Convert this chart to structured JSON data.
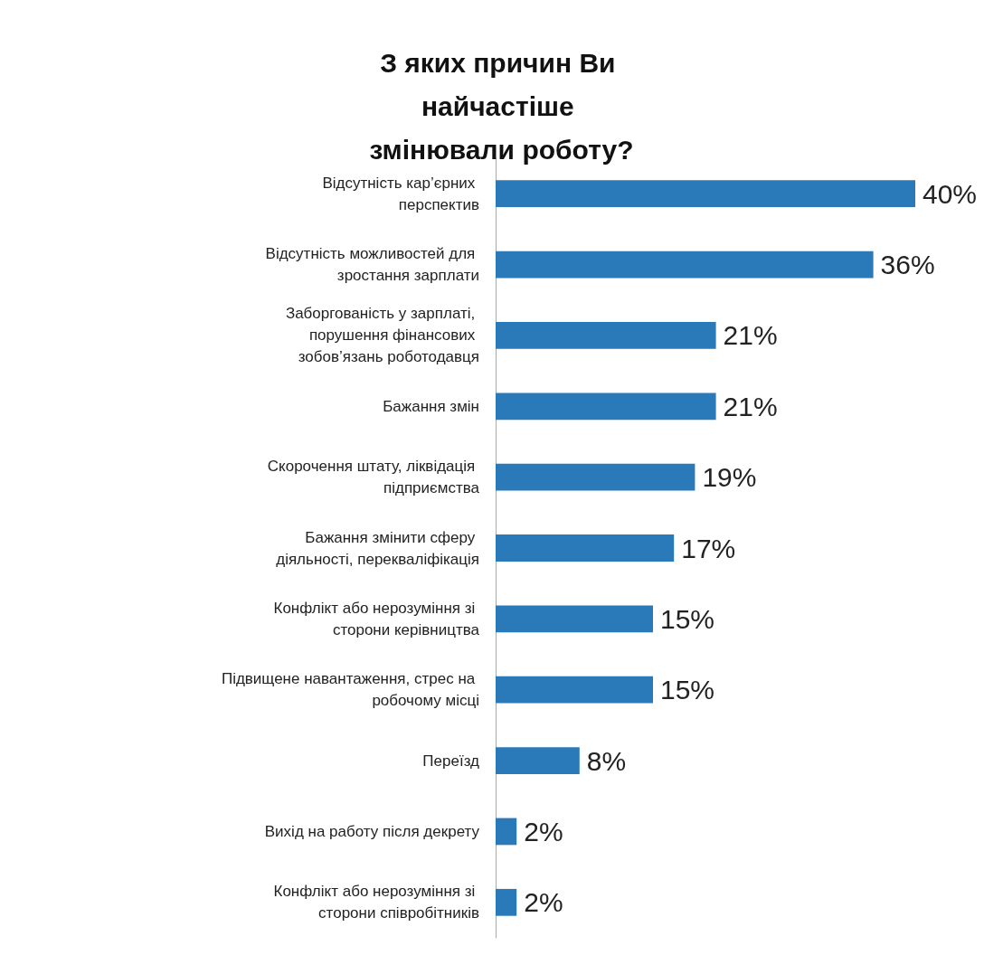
{
  "chart_data": {
    "type": "bar",
    "orientation": "horizontal",
    "tick_labels": "y",
    "title": "З яких причин Ви найчастіше змінювали роботу?",
    "categories": [
      "Відсутність кар’єрних перспектив",
      "Відсутність можливостей для зростання зарплати",
      "Заборгованість у зарплаті, порушення фінансових зобов’язань роботодавця",
      "Бажання змін",
      "Скорочення штату, ліквідація підприємства",
      "Бажання змінити сферу діяльності, перекваліфікація",
      "Конфлікт або нерозуміння зі сторони керівництва",
      "Підвищене навантаження, стрес на робочому місці",
      "Переїзд",
      "Вихід на работу після декрету",
      "Конфлікт або нерозуміння зі сторони співробітників"
    ],
    "values": [
      40,
      36,
      21,
      21,
      19,
      17,
      15,
      15,
      8,
      2,
      2
    ],
    "value_labels": [
      "40%",
      "36%",
      "21%",
      "21%",
      "19%",
      "17%",
      "15%",
      "15%",
      "8%",
      "2%",
      "2%"
    ],
    "color": "#2a7ab9"
  }
}
